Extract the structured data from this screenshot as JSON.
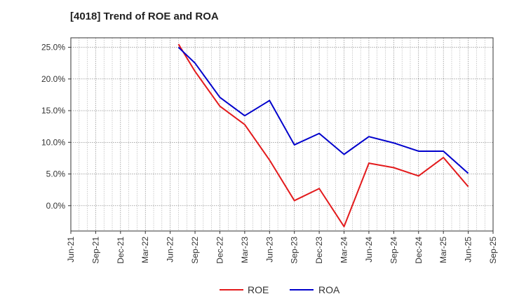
{
  "chart_data": {
    "type": "line",
    "title": "[4018]  Trend of ROE and ROA",
    "xlabel": "",
    "ylabel": "",
    "x_ticks": [
      "Jun-21",
      "Sep-21",
      "Dec-21",
      "Mar-22",
      "Jun-22",
      "Sep-22",
      "Dec-22",
      "Mar-23",
      "Jun-23",
      "Sep-23",
      "Dec-23",
      "Mar-24",
      "Jun-24",
      "Sep-24",
      "Dec-24",
      "Mar-25",
      "Jun-25",
      "Sep-25"
    ],
    "y_ticks": [
      "25.0%",
      "20.0%",
      "15.0%",
      "10.0%",
      "5.0%",
      "0.0%"
    ],
    "y_tick_values": [
      25,
      20,
      15,
      10,
      5,
      0
    ],
    "ylim": [
      -4,
      26.5
    ],
    "grid": true,
    "legend_position": "bottom-center",
    "series": [
      {
        "name": "ROE",
        "color": "#e31a1c",
        "points": [
          {
            "x": "Jul-22",
            "y": 25.5
          },
          {
            "x": "Sep-22",
            "y": 21.2
          },
          {
            "x": "Dec-22",
            "y": 15.7
          },
          {
            "x": "Mar-23",
            "y": 12.8
          },
          {
            "x": "Jun-23",
            "y": 7.2
          },
          {
            "x": "Sep-23",
            "y": 0.8
          },
          {
            "x": "Dec-23",
            "y": 2.7
          },
          {
            "x": "Mar-24",
            "y": -3.3
          },
          {
            "x": "Jun-24",
            "y": 6.7
          },
          {
            "x": "Sep-24",
            "y": 6.0
          },
          {
            "x": "Dec-24",
            "y": 4.7
          },
          {
            "x": "Mar-25",
            "y": 7.6
          },
          {
            "x": "Jun-25",
            "y": 3.0
          }
        ]
      },
      {
        "name": "ROA",
        "color": "#0000cc",
        "points": [
          {
            "x": "Jul-22",
            "y": 25.0
          },
          {
            "x": "Sep-22",
            "y": 22.5
          },
          {
            "x": "Dec-22",
            "y": 17.1
          },
          {
            "x": "Mar-23",
            "y": 14.2
          },
          {
            "x": "Jun-23",
            "y": 16.6
          },
          {
            "x": "Sep-23",
            "y": 9.6
          },
          {
            "x": "Dec-23",
            "y": 11.4
          },
          {
            "x": "Mar-24",
            "y": 8.1
          },
          {
            "x": "Jun-24",
            "y": 10.9
          },
          {
            "x": "Sep-24",
            "y": 9.9
          },
          {
            "x": "Dec-24",
            "y": 8.6
          },
          {
            "x": "Mar-25",
            "y": 8.6
          },
          {
            "x": "Jun-25",
            "y": 5.1
          }
        ]
      }
    ]
  }
}
